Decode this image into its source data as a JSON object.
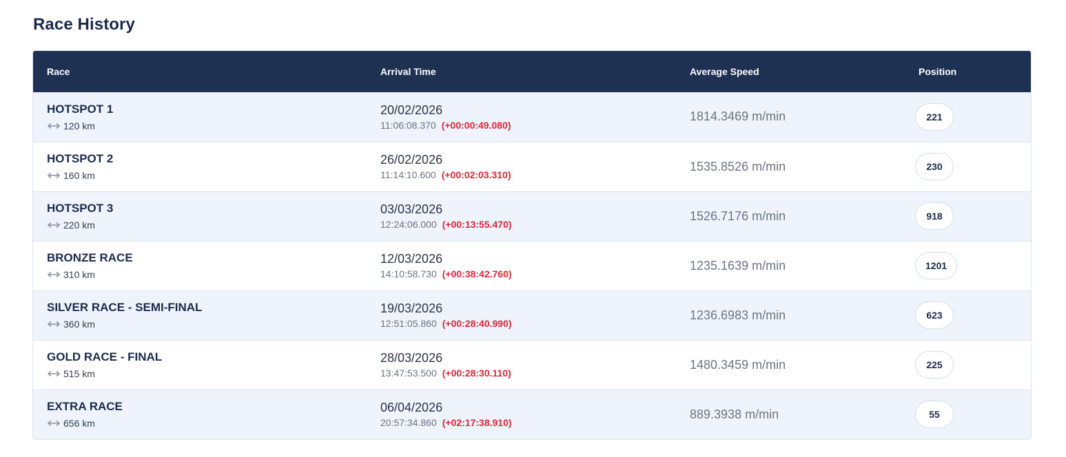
{
  "page": {
    "title": "Race History"
  },
  "table": {
    "headers": {
      "race": "Race",
      "arrival": "Arrival Time",
      "speed": "Average Speed",
      "position": "Position"
    },
    "rows": [
      {
        "name": "HOTSPOT 1",
        "distance": "120 km",
        "date": "20/02/2026",
        "time": "11:06:08.370",
        "gap": "(+00:00:49.080)",
        "speed": "1814.3469 m/min",
        "position": "221"
      },
      {
        "name": "HOTSPOT 2",
        "distance": "160 km",
        "date": "26/02/2026",
        "time": "11:14:10.600",
        "gap": "(+00:02:03.310)",
        "speed": "1535.8526 m/min",
        "position": "230"
      },
      {
        "name": "HOTSPOT 3",
        "distance": "220 km",
        "date": "03/03/2026",
        "time": "12:24:06.000",
        "gap": "(+00:13:55.470)",
        "speed": "1526.7176 m/min",
        "position": "918"
      },
      {
        "name": "BRONZE RACE",
        "distance": "310 km",
        "date": "12/03/2026",
        "time": "14:10:58.730",
        "gap": "(+00:38:42.760)",
        "speed": "1235.1639 m/min",
        "position": "1201"
      },
      {
        "name": "SILVER RACE - SEMI-FINAL",
        "distance": "360 km",
        "date": "19/03/2026",
        "time": "12:51:05.860",
        "gap": "(+00:28:40.990)",
        "speed": "1236.6983 m/min",
        "position": "623"
      },
      {
        "name": "GOLD RACE - FINAL",
        "distance": "515 km",
        "date": "28/03/2026",
        "time": "13:47:53.500",
        "gap": "(+00:28:30.110)",
        "speed": "1480.3459 m/min",
        "position": "225"
      },
      {
        "name": "EXTRA RACE",
        "distance": "656 km",
        "date": "06/04/2026",
        "time": "20:57:34.860",
        "gap": "(+02:17:38.910)",
        "speed": "889.3938 m/min",
        "position": "55"
      }
    ]
  },
  "icons": {
    "distance": "double-arrow-horizontal-icon"
  },
  "colors": {
    "header_bg": "#1f3153",
    "odd_row_bg": "#eff4fc",
    "gap_red": "#d72638"
  }
}
